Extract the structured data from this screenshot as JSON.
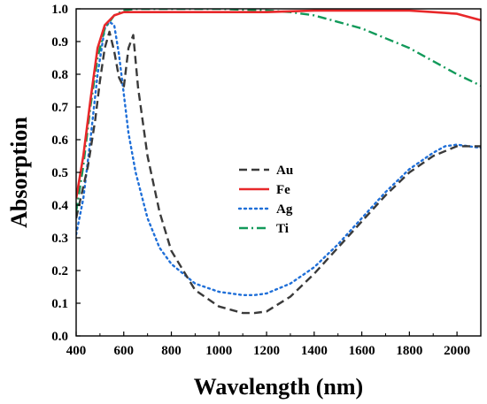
{
  "chart_data": {
    "type": "line",
    "xlabel": "Wavelength (nm)",
    "ylabel": "Absorption",
    "xlim": [
      400,
      2100
    ],
    "ylim": [
      0.0,
      1.0
    ],
    "xticks": [
      400,
      600,
      800,
      1000,
      1200,
      1400,
      1600,
      1800,
      2000
    ],
    "yticks": [
      "0.0",
      "0.1",
      "0.2",
      "0.3",
      "0.4",
      "0.5",
      "0.6",
      "0.7",
      "0.8",
      "0.9",
      "1.0"
    ],
    "grid": false,
    "legend_position": "center-left",
    "series": [
      {
        "name": "Au",
        "color": "#3a3a3a",
        "dash": "dash",
        "x": [
          400,
          450,
          480,
          500,
          520,
          540,
          560,
          580,
          600,
          620,
          640,
          660,
          700,
          750,
          800,
          900,
          1000,
          1100,
          1150,
          1200,
          1300,
          1400,
          1500,
          1600,
          1700,
          1800,
          1900,
          2000,
          2100
        ],
        "y": [
          0.36,
          0.52,
          0.66,
          0.78,
          0.88,
          0.93,
          0.87,
          0.79,
          0.76,
          0.88,
          0.92,
          0.76,
          0.55,
          0.38,
          0.26,
          0.14,
          0.09,
          0.07,
          0.07,
          0.075,
          0.12,
          0.19,
          0.27,
          0.35,
          0.43,
          0.5,
          0.55,
          0.58,
          0.58
        ]
      },
      {
        "name": "Fe",
        "color": "#e8282a",
        "dash": "solid",
        "x": [
          400,
          430,
          460,
          490,
          520,
          560,
          600,
          650,
          700,
          800,
          1000,
          1200,
          1400,
          1600,
          1800,
          1900,
          2000,
          2100
        ],
        "y": [
          0.42,
          0.55,
          0.72,
          0.88,
          0.95,
          0.98,
          0.99,
          0.99,
          0.99,
          0.99,
          0.99,
          0.99,
          0.995,
          0.995,
          0.995,
          0.99,
          0.985,
          0.965
        ]
      },
      {
        "name": "Ag",
        "color": "#1f6fd8",
        "dash": "dot",
        "x": [
          400,
          430,
          460,
          490,
          520,
          540,
          560,
          580,
          600,
          620,
          650,
          700,
          750,
          800,
          900,
          1000,
          1100,
          1150,
          1200,
          1300,
          1400,
          1500,
          1600,
          1700,
          1800,
          1900,
          1950,
          2000,
          2100
        ],
        "y": [
          0.31,
          0.42,
          0.6,
          0.8,
          0.94,
          0.96,
          0.95,
          0.86,
          0.74,
          0.62,
          0.5,
          0.36,
          0.27,
          0.22,
          0.16,
          0.135,
          0.125,
          0.125,
          0.13,
          0.16,
          0.21,
          0.28,
          0.36,
          0.44,
          0.51,
          0.56,
          0.58,
          0.585,
          0.575
        ]
      },
      {
        "name": "Ti",
        "color": "#129a5a",
        "dash": "dashdot",
        "x": [
          400,
          430,
          460,
          490,
          520,
          560,
          600,
          650,
          700,
          800,
          1000,
          1200,
          1300,
          1400,
          1500,
          1600,
          1700,
          1800,
          1900,
          2000,
          2100
        ],
        "y": [
          0.38,
          0.52,
          0.7,
          0.85,
          0.94,
          0.98,
          0.995,
          1.0,
          1.0,
          1.0,
          1.0,
          0.995,
          0.99,
          0.98,
          0.96,
          0.94,
          0.91,
          0.88,
          0.84,
          0.8,
          0.765
        ]
      }
    ]
  }
}
